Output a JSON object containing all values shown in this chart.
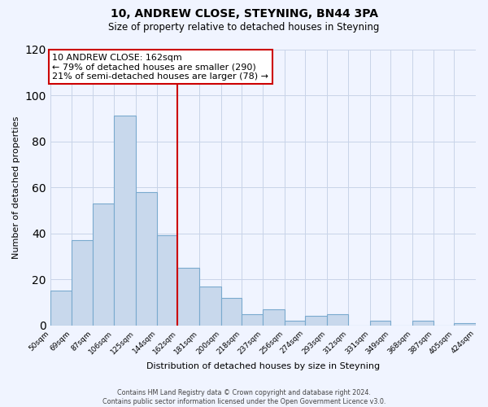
{
  "title": "10, ANDREW CLOSE, STEYNING, BN44 3PA",
  "subtitle": "Size of property relative to detached houses in Steyning",
  "xlabel": "Distribution of detached houses by size in Steyning",
  "ylabel": "Number of detached properties",
  "bar_edges": [
    50,
    69,
    87,
    106,
    125,
    144,
    162,
    181,
    200,
    218,
    237,
    256,
    274,
    293,
    312,
    331,
    349,
    368,
    387,
    405,
    424
  ],
  "bar_heights": [
    15,
    37,
    53,
    91,
    58,
    39,
    25,
    17,
    12,
    5,
    7,
    2,
    4,
    5,
    0,
    2,
    0,
    2,
    0,
    1
  ],
  "tick_labels": [
    "50sqm",
    "69sqm",
    "87sqm",
    "106sqm",
    "125sqm",
    "144sqm",
    "162sqm",
    "181sqm",
    "200sqm",
    "218sqm",
    "237sqm",
    "256sqm",
    "274sqm",
    "293sqm",
    "312sqm",
    "331sqm",
    "349sqm",
    "368sqm",
    "387sqm",
    "405sqm",
    "424sqm"
  ],
  "bar_color": "#c8d8ec",
  "bar_edge_color": "#7aaace",
  "vline_x": 162,
  "vline_color": "#cc0000",
  "annotation_line1": "10 ANDREW CLOSE: 162sqm",
  "annotation_line2": "← 79% of detached houses are smaller (290)",
  "annotation_line3": "21% of semi-detached houses are larger (78) →",
  "annotation_box_color": "#ffffff",
  "annotation_box_edge": "#cc0000",
  "ylim": [
    0,
    120
  ],
  "yticks": [
    0,
    20,
    40,
    60,
    80,
    100,
    120
  ],
  "footer_line1": "Contains HM Land Registry data © Crown copyright and database right 2024.",
  "footer_line2": "Contains public sector information licensed under the Open Government Licence v3.0.",
  "bg_color": "#f0f4ff",
  "grid_color": "#c8d4e8"
}
